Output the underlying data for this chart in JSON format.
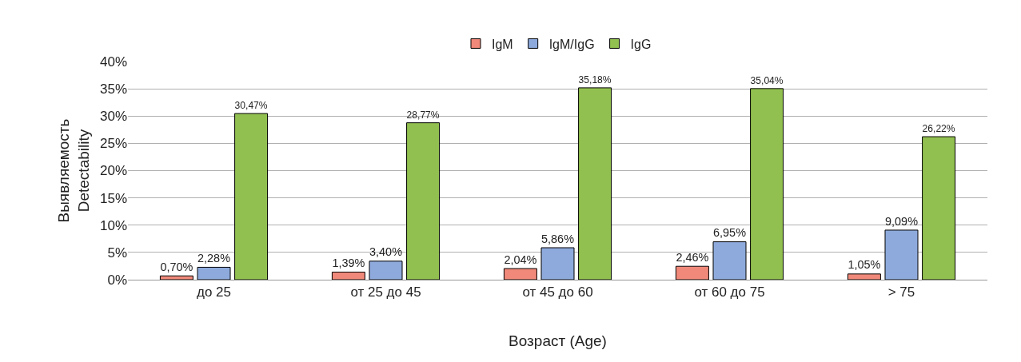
{
  "chart_data": {
    "type": "bar",
    "xlabel": "Возраст (Age)",
    "ylabel": "Выявляемость\nDetectability",
    "categories": [
      "до 25",
      "от 25 до 45",
      "от 45 до 60",
      "от 60 до 75",
      "> 75"
    ],
    "series": [
      {
        "name": "IgM",
        "color": "#f0897a",
        "values": [
          0.7,
          1.39,
          2.04,
          2.46,
          1.05
        ],
        "value_labels": [
          "0,70%",
          "1,39%",
          "2,04%",
          "2,46%",
          "1,05%"
        ]
      },
      {
        "name": "IgM/IgG",
        "color": "#8eaadc",
        "values": [
          2.28,
          3.4,
          5.86,
          6.95,
          9.09
        ],
        "value_labels": [
          "2,28%",
          "3,40%",
          "5,86%",
          "6,95%",
          "9,09%"
        ]
      },
      {
        "name": "IgG",
        "color": "#92c050",
        "values": [
          30.47,
          28.77,
          35.18,
          35.04,
          26.22
        ],
        "value_labels": [
          "30,47%",
          "28,77%",
          "35,18%",
          "35,04%",
          "26,22%"
        ]
      }
    ],
    "ylim": [
      0,
      40
    ],
    "yticks": [
      {
        "value": 0,
        "label": "0%"
      },
      {
        "value": 5,
        "label": "5%"
      },
      {
        "value": 10,
        "label": "10%"
      },
      {
        "value": 15,
        "label": "15%"
      },
      {
        "value": 20,
        "label": "20%"
      },
      {
        "value": 25,
        "label": "25%"
      },
      {
        "value": 30,
        "label": "30%"
      },
      {
        "value": 35,
        "label": "35%"
      },
      {
        "value": 40,
        "label": "40%"
      }
    ],
    "grid": "y",
    "legend": "top"
  }
}
